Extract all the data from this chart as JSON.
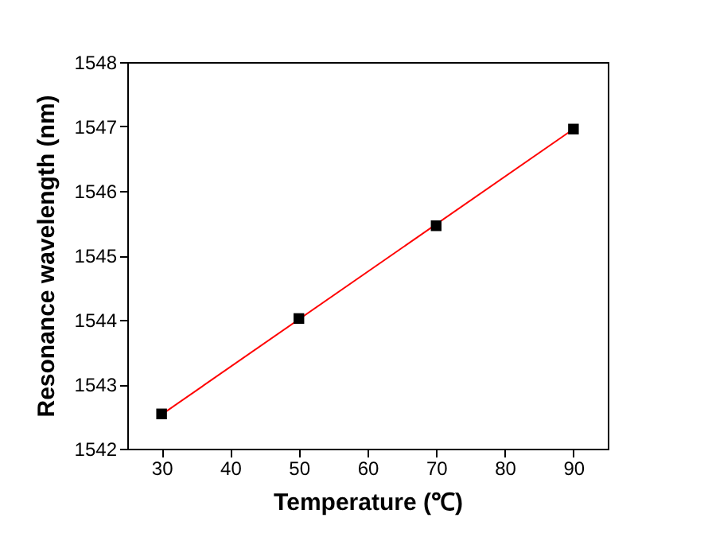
{
  "chart_data": {
    "type": "scatter",
    "xlabel": "Temperature (℃)",
    "ylabel": "Resonance wavelength (nm)",
    "x": [
      30,
      50,
      70,
      90
    ],
    "series": [
      {
        "type": "line",
        "color": "#ff0000",
        "x": [
          30,
          90
        ],
        "values": [
          1542.53,
          1546.96
        ]
      },
      {
        "color": "#000000",
        "marker": "square",
        "values": [
          1542.54,
          1544.02,
          1545.46,
          1546.96
        ]
      }
    ],
    "xlim": [
      25,
      95
    ],
    "xticks": [
      30,
      40,
      50,
      60,
      70,
      80,
      90
    ],
    "ylim": [
      1542,
      1548
    ],
    "yticks": [
      1542,
      1543,
      1544,
      1545,
      1546,
      1547,
      1548
    ],
    "grid": false
  }
}
